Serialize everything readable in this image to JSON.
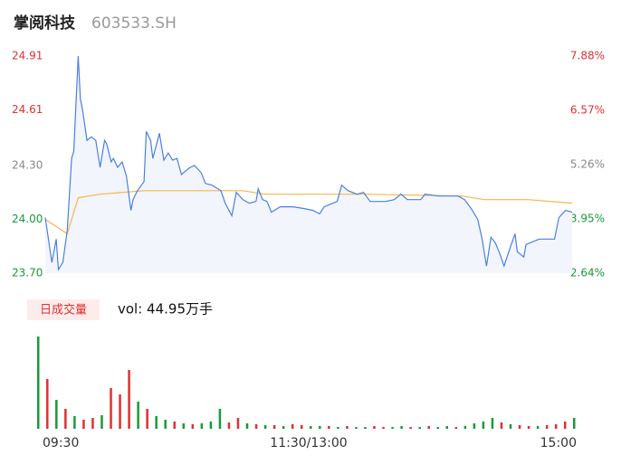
{
  "header": {
    "name": "掌阅科技",
    "code": "603533.SH"
  },
  "chart_data": [
    {
      "type": "line",
      "x": [
        0,
        3,
        5,
        6,
        8,
        10,
        12,
        13,
        15,
        16,
        17,
        19,
        21,
        23,
        25,
        27,
        28,
        30,
        31,
        33,
        35,
        37,
        39,
        40,
        42,
        45,
        46,
        48,
        49,
        52,
        54,
        56,
        58,
        60,
        62,
        64,
        66,
        68,
        71,
        73,
        76,
        80,
        82,
        85,
        87,
        90,
        93,
        96,
        97,
        99,
        101,
        103,
        107,
        113,
        118,
        122,
        125,
        127,
        133,
        135,
        138,
        142,
        145,
        148,
        155,
        159,
        162,
        165,
        171,
        173,
        179,
        188,
        191,
        194,
        197,
        199,
        201,
        203,
        205,
        207,
        209,
        212,
        214,
        215,
        218,
        219,
        225,
        232,
        234,
        237,
        240
      ],
      "xlim": [
        0,
        240
      ],
      "xticks": [
        {
          "value": 0,
          "label": "09:30"
        },
        {
          "value": 120,
          "label": "11:30/13:00"
        },
        {
          "value": 240,
          "label": "15:00"
        }
      ],
      "series": [
        {
          "color": "#4a80e0",
          "values": [
            24.01,
            23.76,
            23.89,
            23.72,
            23.76,
            23.94,
            24.34,
            24.38,
            24.91,
            24.67,
            24.61,
            24.44,
            24.46,
            24.44,
            24.29,
            24.44,
            24.42,
            24.32,
            24.34,
            24.29,
            24.32,
            24.24,
            24.05,
            24.11,
            24.16,
            24.21,
            24.49,
            24.44,
            24.34,
            24.48,
            24.33,
            24.37,
            24.33,
            24.34,
            24.25,
            24.27,
            24.29,
            24.3,
            24.26,
            24.2,
            24.19,
            24.16,
            24.09,
            24.02,
            24.15,
            24.11,
            24.09,
            24.1,
            24.17,
            24.11,
            24.1,
            24.04,
            24.07,
            24.07,
            24.06,
            24.05,
            24.03,
            24.07,
            24.1,
            24.19,
            24.16,
            24.14,
            24.15,
            24.1,
            24.1,
            24.11,
            24.14,
            24.11,
            24.11,
            24.14,
            24.13,
            24.13,
            24.11,
            24.06,
            24.0,
            23.89,
            23.74,
            23.9,
            23.87,
            23.81,
            23.74,
            23.85,
            23.92,
            23.82,
            23.79,
            23.86,
            23.89,
            23.89,
            24.01,
            24.05,
            24.04
          ]
        }
      ],
      "avg": {
        "color": "#f7b54a",
        "x": [
          0,
          10,
          15,
          25,
          45,
          90,
          100,
          145,
          190,
          200,
          220,
          240
        ],
        "values": [
          24.0,
          23.92,
          24.12,
          24.14,
          24.16,
          24.16,
          24.14,
          24.14,
          24.13,
          24.11,
          24.11,
          24.09
        ]
      },
      "ylim": [
        23.7,
        24.91
      ],
      "yticks": [
        {
          "value": 24.91,
          "label": "24.91",
          "color": "#e03030"
        },
        {
          "value": 24.61,
          "label": "24.61",
          "color": "#e03030"
        },
        {
          "value": 24.3,
          "label": "24.30",
          "color": "#888888"
        },
        {
          "value": 24.0,
          "label": "24.00",
          "color": "#1a9a3a"
        },
        {
          "value": 23.7,
          "label": "23.70",
          "color": "#1a9a3a"
        }
      ],
      "y2lim": [
        2.64,
        7.88
      ],
      "y2ticks": [
        {
          "value": 7.88,
          "label": "7.88%",
          "color": "#e03030"
        },
        {
          "value": 6.57,
          "label": "6.57%",
          "color": "#e03030"
        },
        {
          "value": 5.26,
          "label": "5.26%",
          "color": "#888888"
        },
        {
          "value": 3.95,
          "label": "3.95%",
          "color": "#1a9a3a"
        },
        {
          "value": 2.64,
          "label": "2.64%",
          "color": "#1a9a3a"
        }
      ]
    },
    {
      "type": "bar",
      "label": "日成交量",
      "vol": "vol: 44.95万手",
      "ylim": [
        0,
        102
      ],
      "values": [
        102,
        55,
        32,
        22,
        14,
        10,
        12,
        15,
        45,
        38,
        65,
        30,
        22,
        14,
        10,
        8,
        6,
        5,
        6,
        8,
        22,
        7,
        12,
        6,
        5,
        4,
        4,
        3,
        5,
        4,
        3,
        3,
        3,
        2,
        3,
        2,
        2,
        3,
        2,
        2,
        3,
        2,
        2,
        3,
        2,
        3,
        2,
        3,
        6,
        8,
        12,
        7,
        5,
        4,
        3,
        3,
        4,
        5,
        8,
        12
      ],
      "colors": [
        "#1a9a3a",
        "#e03030",
        "#1a9a3a",
        "#e03030",
        "#1a9a3a",
        "#e03030",
        "#e03030",
        "#1a9a3a",
        "#e03030",
        "#e03030",
        "#e03030",
        "#1a9a3a",
        "#e03030",
        "#1a9a3a",
        "#1a9a3a",
        "#e03030",
        "#1a9a3a",
        "#e03030",
        "#1a9a3a",
        "#1a9a3a",
        "#1a9a3a",
        "#e03030",
        "#e03030",
        "#1a9a3a",
        "#e03030",
        "#1a9a3a",
        "#e03030",
        "#1a9a3a",
        "#e03030",
        "#e03030",
        "#1a9a3a",
        "#1a9a3a",
        "#e03030",
        "#1a9a3a",
        "#e03030",
        "#1a9a3a",
        "#1a9a3a",
        "#e03030",
        "#e03030",
        "#1a9a3a",
        "#1a9a3a",
        "#e03030",
        "#1a9a3a",
        "#e03030",
        "#1a9a3a",
        "#1a9a3a",
        "#e03030",
        "#1a9a3a",
        "#1a9a3a",
        "#1a9a3a",
        "#1a9a3a",
        "#e03030",
        "#1a9a3a",
        "#e03030",
        "#e03030",
        "#1a9a3a",
        "#e03030",
        "#e03030",
        "#e03030",
        "#1a9a3a"
      ]
    }
  ]
}
